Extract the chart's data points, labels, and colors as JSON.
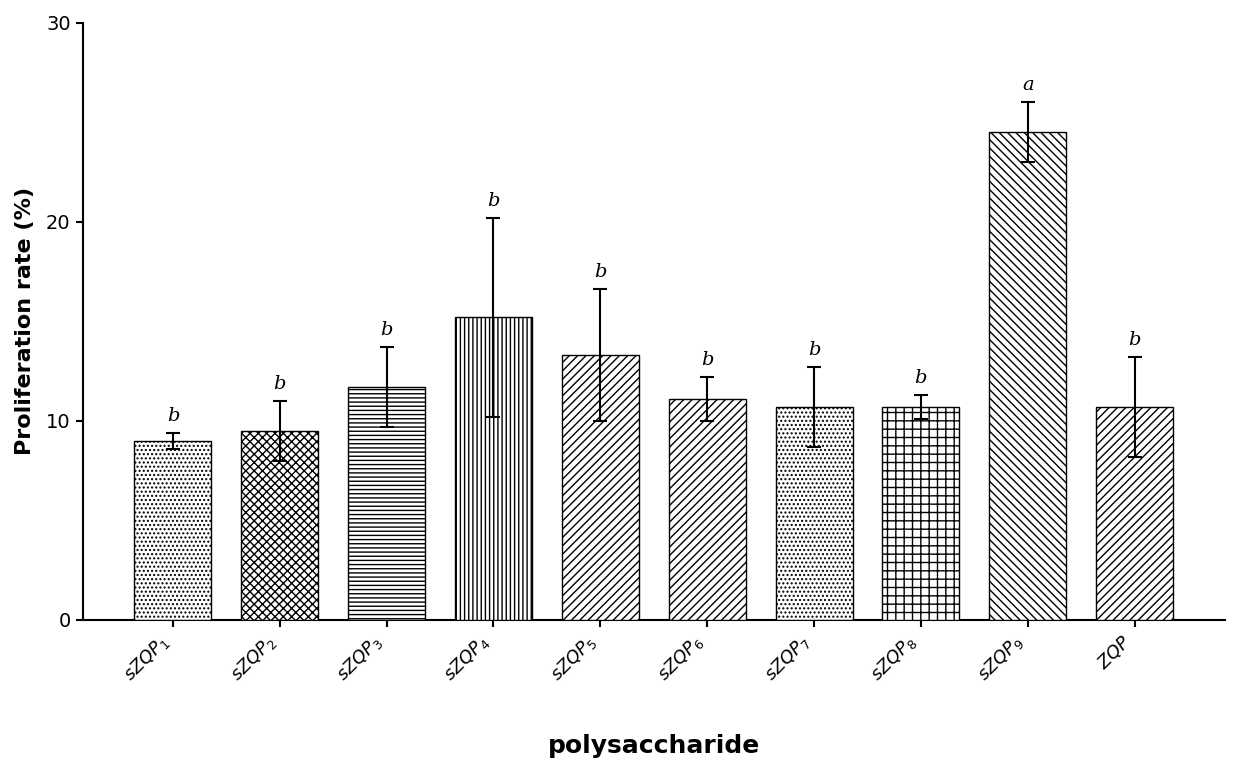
{
  "categories": [
    "sZQP",
    "sZQP",
    "sZQP",
    "sZQP",
    "sZQP",
    "sZQP",
    "sZQP",
    "sZQP",
    "sZQP",
    "ZQP"
  ],
  "subscripts": [
    "1",
    "2",
    "3",
    "4",
    "5",
    "6",
    "7",
    "8",
    "9",
    ""
  ],
  "values": [
    9.0,
    9.5,
    11.7,
    15.2,
    13.3,
    11.1,
    10.7,
    10.7,
    24.5,
    10.7
  ],
  "errors": [
    0.4,
    1.5,
    2.0,
    5.0,
    3.3,
    1.1,
    2.0,
    0.6,
    1.5,
    2.5
  ],
  "significance": [
    "b",
    "b",
    "b",
    "b",
    "b",
    "b",
    "b",
    "b",
    "a",
    "b"
  ],
  "hatch_list": [
    "oo",
    "xx",
    "---",
    "|||",
    "////",
    "////",
    "////",
    "++",
    "\\\\\\\\",
    "////"
  ],
  "face_colors": [
    "white",
    "white",
    "white",
    "white",
    "white",
    "white",
    "white",
    "white",
    "white",
    "white"
  ],
  "ylabel": "Proliferation rate (%)",
  "xlabel": "polysaccharide",
  "ylim": [
    0,
    30
  ],
  "yticks": [
    0,
    10,
    20,
    30
  ],
  "axis_fontsize": 16,
  "tick_fontsize": 14,
  "sig_fontsize": 14,
  "bar_width": 0.72
}
